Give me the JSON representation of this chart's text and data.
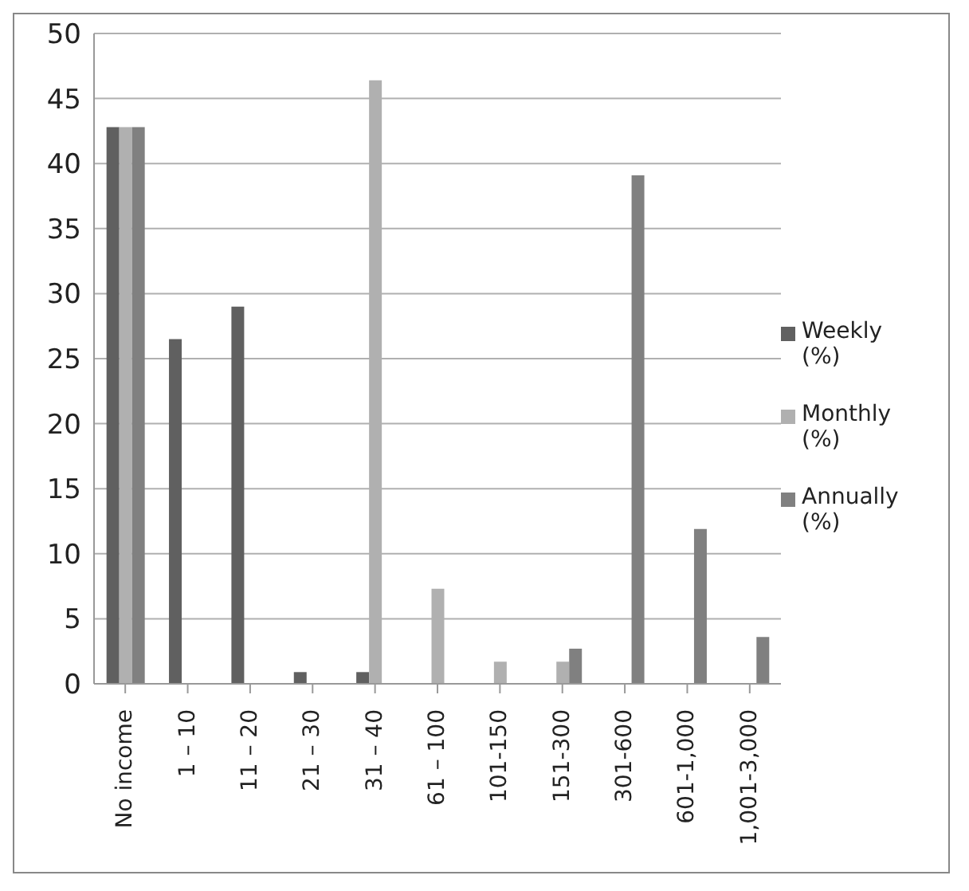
{
  "chart_data": {
    "type": "bar",
    "categories": [
      "No income",
      "1 – 10",
      "11 – 20",
      "21 – 30",
      "31 – 40",
      "61 – 100",
      "101-150",
      "151-300",
      "301-600",
      "601-1,000",
      "1,001-3,000"
    ],
    "series": [
      {
        "name": "Weekly (%)",
        "color": "#606060",
        "values": [
          42.8,
          26.5,
          29,
          0.9,
          0.9,
          null,
          null,
          null,
          null,
          null,
          null
        ]
      },
      {
        "name": "Monthly (%)",
        "color": "#b0b0b0",
        "values": [
          42.8,
          null,
          null,
          null,
          46.4,
          7.3,
          1.7,
          1.7,
          null,
          null,
          null
        ]
      },
      {
        "name": "Annually (%)",
        "color": "#808080",
        "values": [
          42.8,
          null,
          null,
          null,
          null,
          null,
          null,
          2.7,
          39.1,
          11.9,
          3.6
        ]
      }
    ],
    "ylim": [
      0,
      50
    ],
    "yticks": [
      0,
      5,
      10,
      15,
      20,
      25,
      30,
      35,
      40,
      45,
      50
    ],
    "grid": "y",
    "legend": "right"
  }
}
